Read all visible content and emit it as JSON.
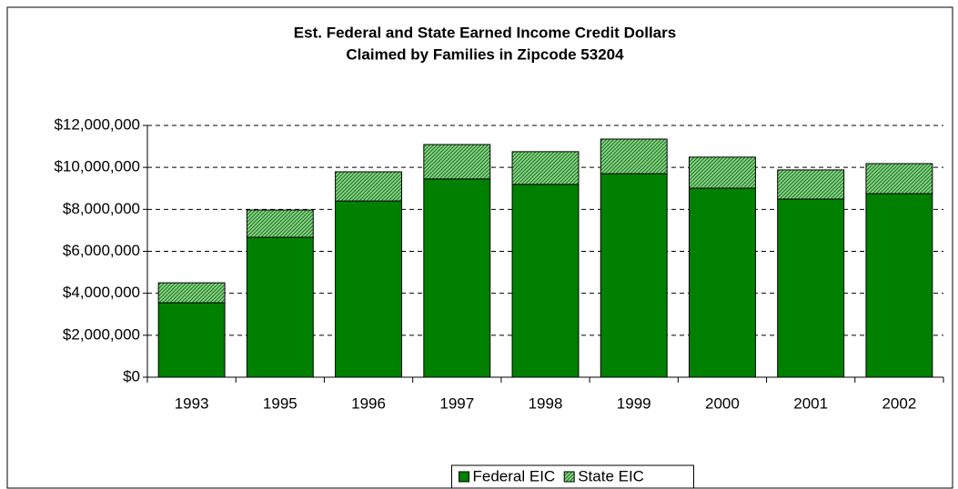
{
  "chart_data": {
    "type": "stacked_bar",
    "title": [
      "Est. Federal and State Earned Income Credit Dollars",
      "Claimed by Families in Zipcode 53204"
    ],
    "categories": [
      "1993",
      "1995",
      "1996",
      "1997",
      "1998",
      "1999",
      "2000",
      "2001",
      "2002"
    ],
    "series": [
      {
        "name": "Federal EIC",
        "color": "#008000",
        "values": [
          3550000,
          6670000,
          8400000,
          9450000,
          9190000,
          9700000,
          9010000,
          8490000,
          8750000
        ]
      },
      {
        "name": "State EIC",
        "color": "#99cc99",
        "values": [
          950000,
          1300000,
          1390000,
          1640000,
          1560000,
          1650000,
          1480000,
          1390000,
          1430000
        ]
      }
    ],
    "ylim": [
      0,
      12000000
    ],
    "yticks": [
      {
        "value": 0,
        "label": "$0"
      },
      {
        "value": 2000000,
        "label": "$2,000,000"
      },
      {
        "value": 4000000,
        "label": "$4,000,000"
      },
      {
        "value": 6000000,
        "label": "$6,000,000"
      },
      {
        "value": 8000000,
        "label": "$8,000,000"
      },
      {
        "value": 10000000,
        "label": "$10,000,000"
      },
      {
        "value": 12000000,
        "label": "$12,000,000"
      }
    ],
    "grid": true,
    "legend": "bottom"
  }
}
